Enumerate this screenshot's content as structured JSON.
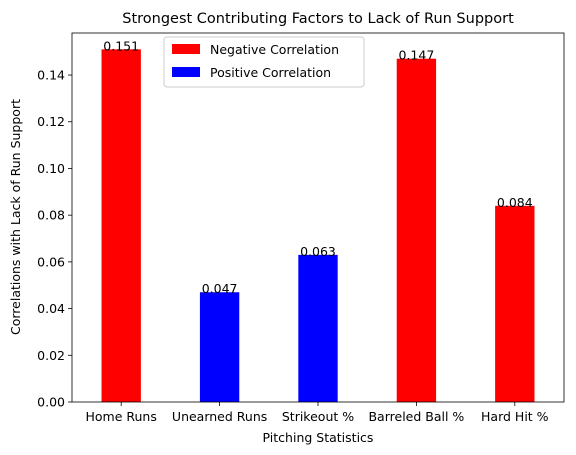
{
  "chart_data": {
    "type": "bar",
    "title": "Strongest Contributing Factors to Lack of Run Support",
    "xlabel": "Pitching Statistics",
    "ylabel": "Correlations with Lack of Run Support",
    "categories": [
      "Home Runs",
      "Unearned Runs",
      "Strikeout %",
      "Barreled Ball %",
      "Hard Hit %"
    ],
    "values": [
      0.151,
      0.047,
      0.063,
      0.147,
      0.084
    ],
    "data_labels": [
      "0.151",
      "0.047",
      "0.063",
      "0.147",
      "0.084"
    ],
    "bar_groups": [
      "negative",
      "positive",
      "positive",
      "negative",
      "negative"
    ],
    "colors": {
      "negative": "#ff0000",
      "positive": "#0000ff"
    },
    "legend": {
      "placement": "upper-center",
      "entries": [
        {
          "group": "negative",
          "label": "Negative Correlation"
        },
        {
          "group": "positive",
          "label": "Positive Correlation"
        }
      ]
    },
    "yticks": [
      "0.00",
      "0.02",
      "0.04",
      "0.06",
      "0.08",
      "0.10",
      "0.12",
      "0.14"
    ],
    "ylim": [
      0,
      0.158
    ],
    "grid": false
  }
}
